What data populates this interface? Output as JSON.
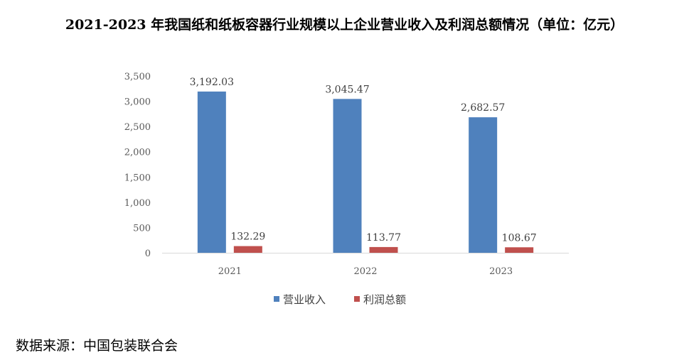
{
  "title": "2021-2023 年我国纸和纸板容器行业规模以上企业营业收入及利润总额情况（单位：亿元）",
  "source": "数据来源：中国包装联合会",
  "chart_data": {
    "type": "bar",
    "categories": [
      "2021",
      "2022",
      "2023"
    ],
    "series": [
      {
        "name": "营业收入",
        "values": [
          3192.03,
          3045.47,
          2682.57
        ],
        "labels": [
          "3,192.03",
          "3,045.47",
          "2,682.57"
        ],
        "color": "#4F81BD"
      },
      {
        "name": "利润总额",
        "values": [
          132.29,
          113.77,
          108.67
        ],
        "labels": [
          "132.29",
          "113.77",
          "108.67"
        ],
        "color": "#C0504D"
      }
    ],
    "ylim": [
      0,
      3500
    ],
    "yticks": [
      0,
      500,
      1000,
      1500,
      2000,
      2500,
      3000,
      3500
    ],
    "ytick_labels": [
      "0",
      "500",
      "1,000",
      "1,500",
      "2,000",
      "2,500",
      "3,000",
      "3,500"
    ],
    "grid": false,
    "legend_position": "bottom"
  }
}
